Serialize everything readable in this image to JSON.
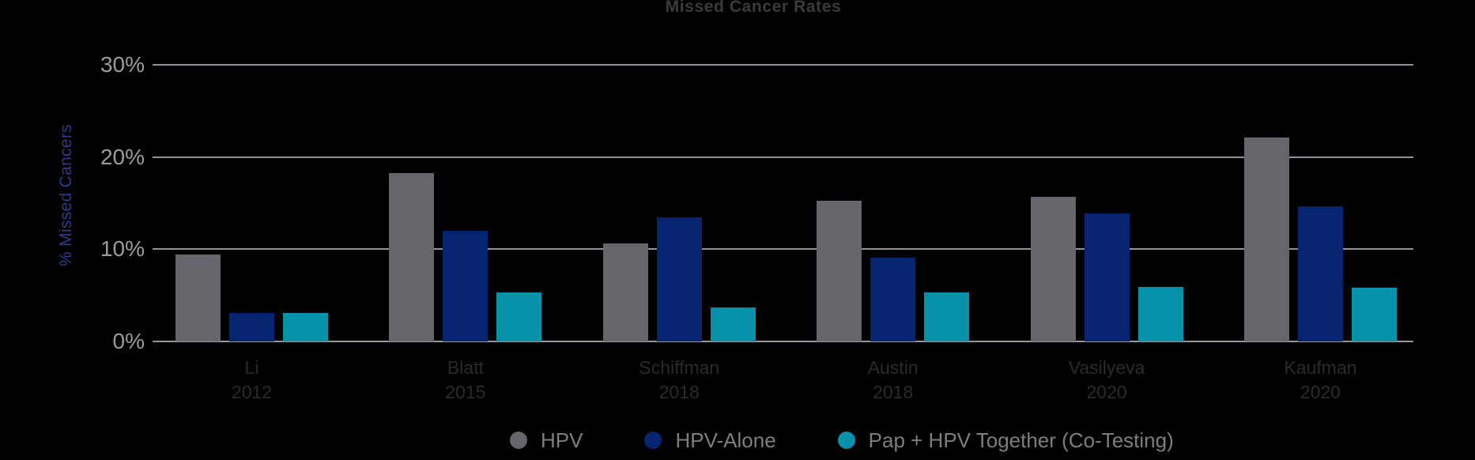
{
  "title": "Missed Cancer Rates",
  "chart_data": {
    "type": "bar",
    "title": "Missed Cancer Rates",
    "xlabel": "",
    "ylabel": "% Missed Cancers",
    "ylim": [
      0,
      30
    ],
    "grid": true,
    "legend_position": "bottom",
    "yticks": [
      {
        "value": 0,
        "label": "0%"
      },
      {
        "value": 10,
        "label": "10%"
      },
      {
        "value": 20,
        "label": "20%"
      },
      {
        "value": 30,
        "label": "30%"
      }
    ],
    "categories": [
      {
        "name": "Li",
        "year": "2012"
      },
      {
        "name": "Blatt",
        "year": "2015"
      },
      {
        "name": "Schiffman",
        "year": "2018"
      },
      {
        "name": "Austin",
        "year": "2018"
      },
      {
        "name": "Vasilyeva",
        "year": "2020"
      },
      {
        "name": "Kaufman",
        "year": "2020"
      }
    ],
    "series": [
      {
        "name": "HPV",
        "color": "#64666b",
        "values": [
          9.4,
          18.3,
          10.6,
          15.3,
          15.7,
          22.1
        ]
      },
      {
        "name": "HPV-Alone",
        "color": "#06246f",
        "values": [
          3.1,
          12.0,
          13.5,
          9.1,
          13.9,
          14.7
        ]
      },
      {
        "name": "Pap + HPV Together (Co-Testing)",
        "color": "#0892a9",
        "values": [
          3.1,
          5.3,
          3.7,
          5.3,
          5.9,
          5.8
        ]
      }
    ]
  },
  "colors": {
    "background": "#000000",
    "title_text": "#3b3b3d",
    "tick_text": "#9a9c9f",
    "gridline": "#919398",
    "y_axis_label_text": "#2e3a90",
    "x_label_text": "#2b2b2d",
    "legend_text": "#7d7e82"
  }
}
